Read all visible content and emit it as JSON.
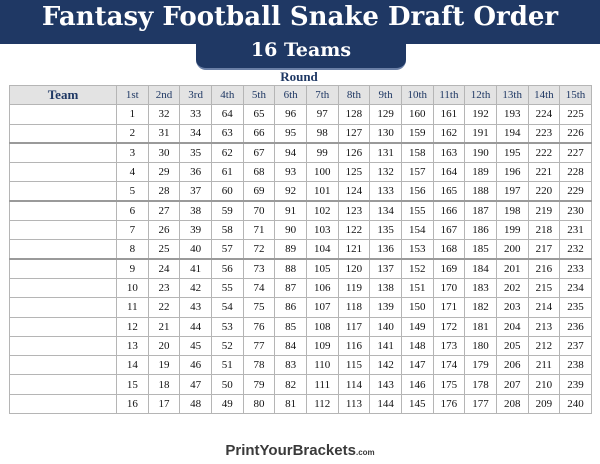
{
  "header": {
    "title": "Fantasy Football Snake Draft Order",
    "subtitle": "16 Teams"
  },
  "table": {
    "round_label": "Round",
    "team_header": "Team",
    "round_headers": [
      "1st",
      "2nd",
      "3rd",
      "4th",
      "5th",
      "6th",
      "7th",
      "8th",
      "9th",
      "10th",
      "11th",
      "12th",
      "13th",
      "14th",
      "15th"
    ],
    "rows": [
      [
        1,
        32,
        33,
        64,
        65,
        96,
        97,
        128,
        129,
        160,
        161,
        192,
        193,
        224,
        225
      ],
      [
        2,
        31,
        34,
        63,
        66,
        95,
        98,
        127,
        130,
        159,
        162,
        191,
        194,
        223,
        226
      ],
      [
        3,
        30,
        35,
        62,
        67,
        94,
        99,
        126,
        131,
        158,
        163,
        190,
        195,
        222,
        227
      ],
      [
        4,
        29,
        36,
        61,
        68,
        93,
        100,
        125,
        132,
        157,
        164,
        189,
        196,
        221,
        228
      ],
      [
        5,
        28,
        37,
        60,
        69,
        92,
        101,
        124,
        133,
        156,
        165,
        188,
        197,
        220,
        229
      ],
      [
        6,
        27,
        38,
        59,
        70,
        91,
        102,
        123,
        134,
        155,
        166,
        187,
        198,
        219,
        230
      ],
      [
        7,
        26,
        39,
        58,
        71,
        90,
        103,
        122,
        135,
        154,
        167,
        186,
        199,
        218,
        231
      ],
      [
        8,
        25,
        40,
        57,
        72,
        89,
        104,
        121,
        136,
        153,
        168,
        185,
        200,
        217,
        232
      ],
      [
        9,
        24,
        41,
        56,
        73,
        88,
        105,
        120,
        137,
        152,
        169,
        184,
        201,
        216,
        233
      ],
      [
        10,
        23,
        42,
        55,
        74,
        87,
        106,
        119,
        138,
        151,
        170,
        183,
        202,
        215,
        234
      ],
      [
        11,
        22,
        43,
        54,
        75,
        86,
        107,
        118,
        139,
        150,
        171,
        182,
        203,
        214,
        235
      ],
      [
        12,
        21,
        44,
        53,
        76,
        85,
        108,
        117,
        140,
        149,
        172,
        181,
        204,
        213,
        236
      ],
      [
        13,
        20,
        45,
        52,
        77,
        84,
        109,
        116,
        141,
        148,
        173,
        180,
        205,
        212,
        237
      ],
      [
        14,
        19,
        46,
        51,
        78,
        83,
        110,
        115,
        142,
        147,
        174,
        179,
        206,
        211,
        238
      ],
      [
        15,
        18,
        47,
        50,
        79,
        82,
        111,
        114,
        143,
        146,
        175,
        178,
        207,
        210,
        239
      ],
      [
        16,
        17,
        48,
        49,
        80,
        81,
        112,
        113,
        144,
        145,
        176,
        177,
        208,
        209,
        240
      ]
    ]
  },
  "footer": {
    "brand": "PrintYourBrackets",
    "tld": ".com"
  },
  "colors": {
    "navy": "#1f3864",
    "header_bg": "#e3e3e3"
  }
}
